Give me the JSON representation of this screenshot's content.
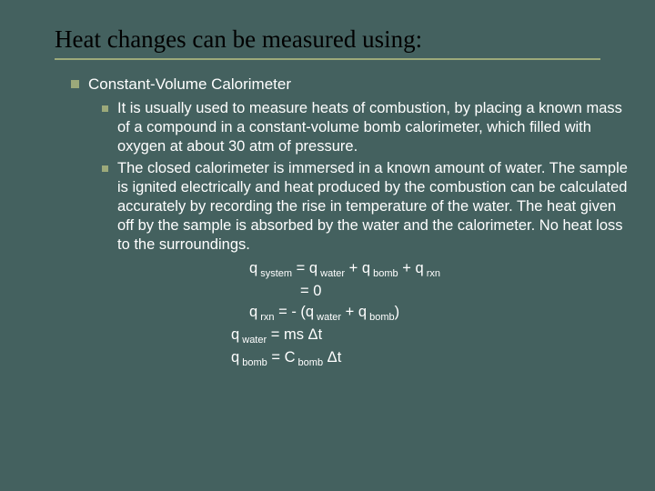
{
  "colors": {
    "background": "#44615f",
    "accent": "#9ca97a",
    "title_text": "#000000",
    "body_text": "#ffffff"
  },
  "typography": {
    "title_font": "Times New Roman",
    "title_size_pt": 20,
    "body_font": "Arial",
    "body_size_pt": 12
  },
  "title": "Heat changes can be measured using:",
  "bullet1": "Constant-Volume Calorimeter",
  "sub1": "It is usually used to measure heats of combustion, by placing a known mass of a compound in a constant-volume bomb calorimeter, which filled with oxygen at about 30 atm of pressure.",
  "sub2": "The closed calorimeter is immersed in a known amount of water. The sample is ignited electrically and heat produced by the combustion can be calculated accurately by recording the rise in temperature of the water. The heat given off by the sample is absorbed by the water and the calorimeter. No heat loss to the surroundings.",
  "eq": {
    "q": "q",
    "system": " system",
    "water": " water",
    "bomb": " bomb",
    "rxn": " rxn",
    "eq_sign": " = ",
    "plus": " + ",
    "zero": "= 0",
    "neg_open": " = - (",
    "close_paren": ")",
    "ms": " = ms ",
    "C": " = C",
    "dt": "Δt",
    "sp": " "
  }
}
